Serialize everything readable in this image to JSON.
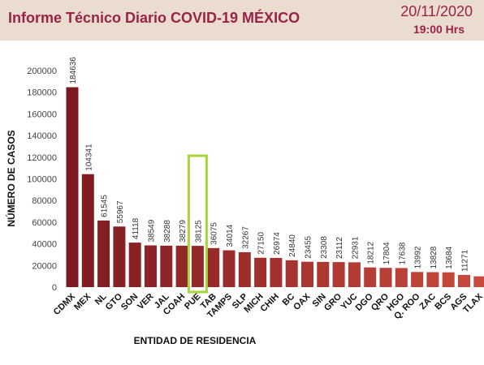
{
  "header": {
    "title": "Informe Técnico Diario COVID-19 MÉXICO",
    "date": "20/11/2020",
    "time": "19:00 Hrs"
  },
  "colors": {
    "header_bg": "#eaddcf",
    "brand": "#9b2247",
    "bar_dark": "#7d1a20",
    "bar_light": "#c94a3d",
    "highlight": "#a6d63a"
  },
  "chart_data": {
    "type": "bar",
    "xlabel": "ENTIDAD DE RESIDENCIA",
    "ylabel": "NÚMERO DE CASOS",
    "ylim": [
      0,
      200000
    ],
    "yticks": [
      "0",
      "20000",
      "40000",
      "60000",
      "80000",
      "100000",
      "120000",
      "140000",
      "160000",
      "180000",
      "200000"
    ],
    "grid": false,
    "highlighted_category": "PUE",
    "categories": [
      "CDMX",
      "MEX",
      "NL",
      "GTO",
      "SON",
      "VER",
      "JAL",
      "COAH",
      "PUE",
      "TAB",
      "TAMPS",
      "SLP",
      "MICH",
      "CHIH",
      "BC",
      "OAX",
      "SIN",
      "GRO",
      "YUC",
      "DGO",
      "QRO",
      "HGO",
      "Q. ROO",
      "ZAC",
      "BCS",
      "AGS",
      "TLAX"
    ],
    "values": [
      184636,
      104341,
      61545,
      55967,
      41118,
      38549,
      38288,
      38279,
      38125,
      36075,
      34014,
      32267,
      27150,
      26974,
      24840,
      23455,
      23308,
      23112,
      22931,
      18212,
      17804,
      17638,
      13992,
      13828,
      13684,
      11271,
      10000
    ],
    "value_labels": [
      "184636",
      "104341",
      "61545",
      "55967",
      "41118",
      "38549",
      "38288",
      "38279",
      "38125",
      "36075",
      "34014",
      "32267",
      "27150",
      "26974",
      "24840",
      "23455",
      "23308",
      "23112",
      "22931",
      "18212",
      "17804",
      "17638",
      "13992",
      "13828",
      "13684",
      "11271",
      ""
    ]
  }
}
